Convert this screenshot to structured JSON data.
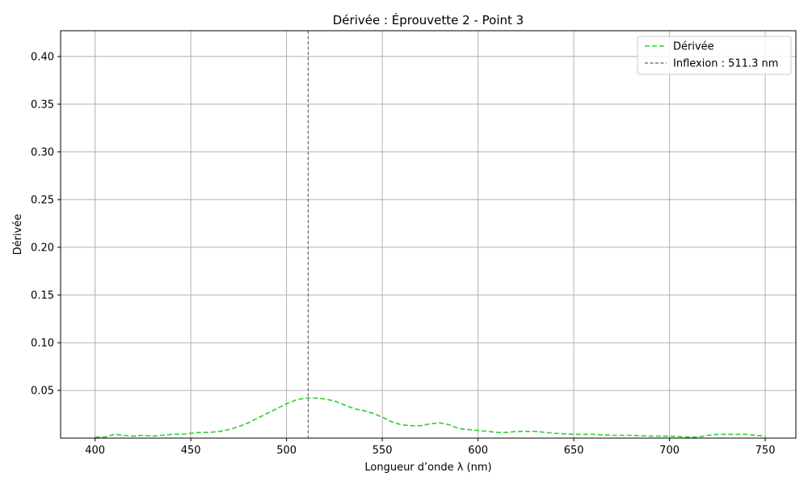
{
  "chart_data": {
    "type": "line",
    "title": "Dérivée : Éprouvette 2 - Point 3",
    "xlabel": "Longueur d’onde λ (nm)",
    "ylabel": "Dérivée",
    "xlim": [
      382,
      766
    ],
    "ylim": [
      0,
      0.427
    ],
    "xticks": [
      400,
      450,
      500,
      550,
      600,
      650,
      700,
      750
    ],
    "yticks": [
      0.05,
      0.1,
      0.15,
      0.2,
      0.25,
      0.3,
      0.35,
      0.4
    ],
    "grid": true,
    "legend_position": "top-right",
    "series": [
      {
        "name": "Dérivée",
        "color": "#32cd32",
        "style": "dashed",
        "x": [
          400,
          405,
          410,
          415,
          420,
          425,
          430,
          435,
          440,
          445,
          450,
          455,
          460,
          465,
          470,
          475,
          480,
          485,
          490,
          495,
          500,
          505,
          510,
          515,
          520,
          525,
          530,
          535,
          540,
          545,
          550,
          555,
          560,
          565,
          570,
          575,
          580,
          585,
          590,
          595,
          600,
          605,
          610,
          615,
          620,
          625,
          630,
          640,
          650,
          660,
          670,
          680,
          690,
          700,
          710,
          715,
          720,
          725,
          730,
          735,
          740,
          745,
          750
        ],
        "y": [
          0.001,
          0.001,
          0.004,
          0.003,
          0.002,
          0.003,
          0.002,
          0.003,
          0.004,
          0.004,
          0.005,
          0.006,
          0.006,
          0.007,
          0.009,
          0.012,
          0.016,
          0.021,
          0.026,
          0.031,
          0.036,
          0.04,
          0.042,
          0.042,
          0.041,
          0.039,
          0.035,
          0.031,
          0.029,
          0.026,
          0.022,
          0.017,
          0.014,
          0.013,
          0.013,
          0.015,
          0.016,
          0.014,
          0.01,
          0.009,
          0.008,
          0.007,
          0.006,
          0.006,
          0.007,
          0.007,
          0.007,
          0.005,
          0.004,
          0.004,
          0.003,
          0.003,
          0.002,
          0.002,
          0.001,
          0.001,
          0.003,
          0.004,
          0.004,
          0.004,
          0.004,
          0.003,
          0.002
        ]
      }
    ],
    "reference_lines": [
      {
        "name": "Inflexion : 511.3 nm",
        "x": 511.3,
        "color": "#666666",
        "style": "dashed"
      }
    ]
  }
}
